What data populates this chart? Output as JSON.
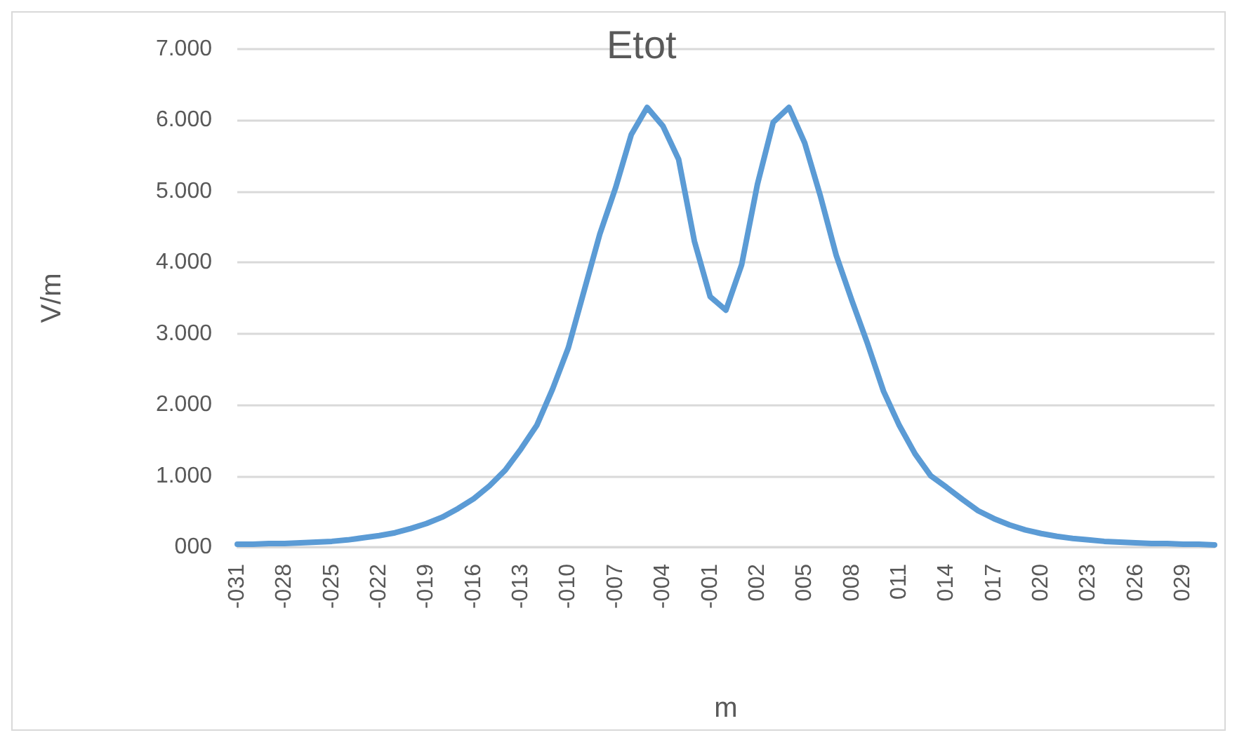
{
  "chart_data": {
    "type": "line",
    "title": "Etot",
    "xlabel": "m",
    "ylabel": "V/m",
    "categories": [
      "-031",
      null,
      null,
      "-028",
      null,
      null,
      "-025",
      null,
      null,
      "-022",
      null,
      null,
      "-019",
      null,
      null,
      "-016",
      null,
      null,
      "-013",
      null,
      null,
      "-010",
      null,
      null,
      "-007",
      null,
      null,
      "-004",
      null,
      null,
      "-001",
      null,
      null,
      "002",
      null,
      null,
      "005",
      null,
      null,
      "008",
      null,
      null,
      "011",
      null,
      null,
      "014",
      null,
      null,
      "017",
      null,
      null,
      "020",
      null,
      null,
      "023",
      null,
      null,
      "026",
      null,
      null,
      "029",
      null,
      null
    ],
    "series": [
      {
        "color": "#5b9bd5",
        "values": [
          40,
          40,
          50,
          50,
          60,
          70,
          80,
          100,
          130,
          160,
          200,
          260,
          330,
          420,
          540,
          680,
          860,
          1080,
          1380,
          1710,
          2220,
          2800,
          3600,
          4400,
          5050,
          5800,
          6180,
          5920,
          5450,
          4300,
          3520,
          3330,
          3970,
          5100,
          5970,
          6180,
          5680,
          4930,
          4100,
          3460,
          2850,
          2190,
          1710,
          1310,
          1000,
          840,
          670,
          510,
          400,
          310,
          240,
          190,
          150,
          120,
          100,
          80,
          70,
          60,
          50,
          50,
          40,
          40,
          30
        ]
      }
    ],
    "ylim": [
      0,
      7000
    ],
    "yticks": [
      {
        "value": 0,
        "label": "000"
      },
      {
        "value": 1000,
        "label": "1.000"
      },
      {
        "value": 2000,
        "label": "2.000"
      },
      {
        "value": 3000,
        "label": "3.000"
      },
      {
        "value": 4000,
        "label": "4.000"
      },
      {
        "value": 5000,
        "label": "5.000"
      },
      {
        "value": 6000,
        "label": "6.000"
      },
      {
        "value": 7000,
        "label": "7.000"
      }
    ],
    "grid": "y",
    "marker": "none",
    "line_style": "solid"
  }
}
